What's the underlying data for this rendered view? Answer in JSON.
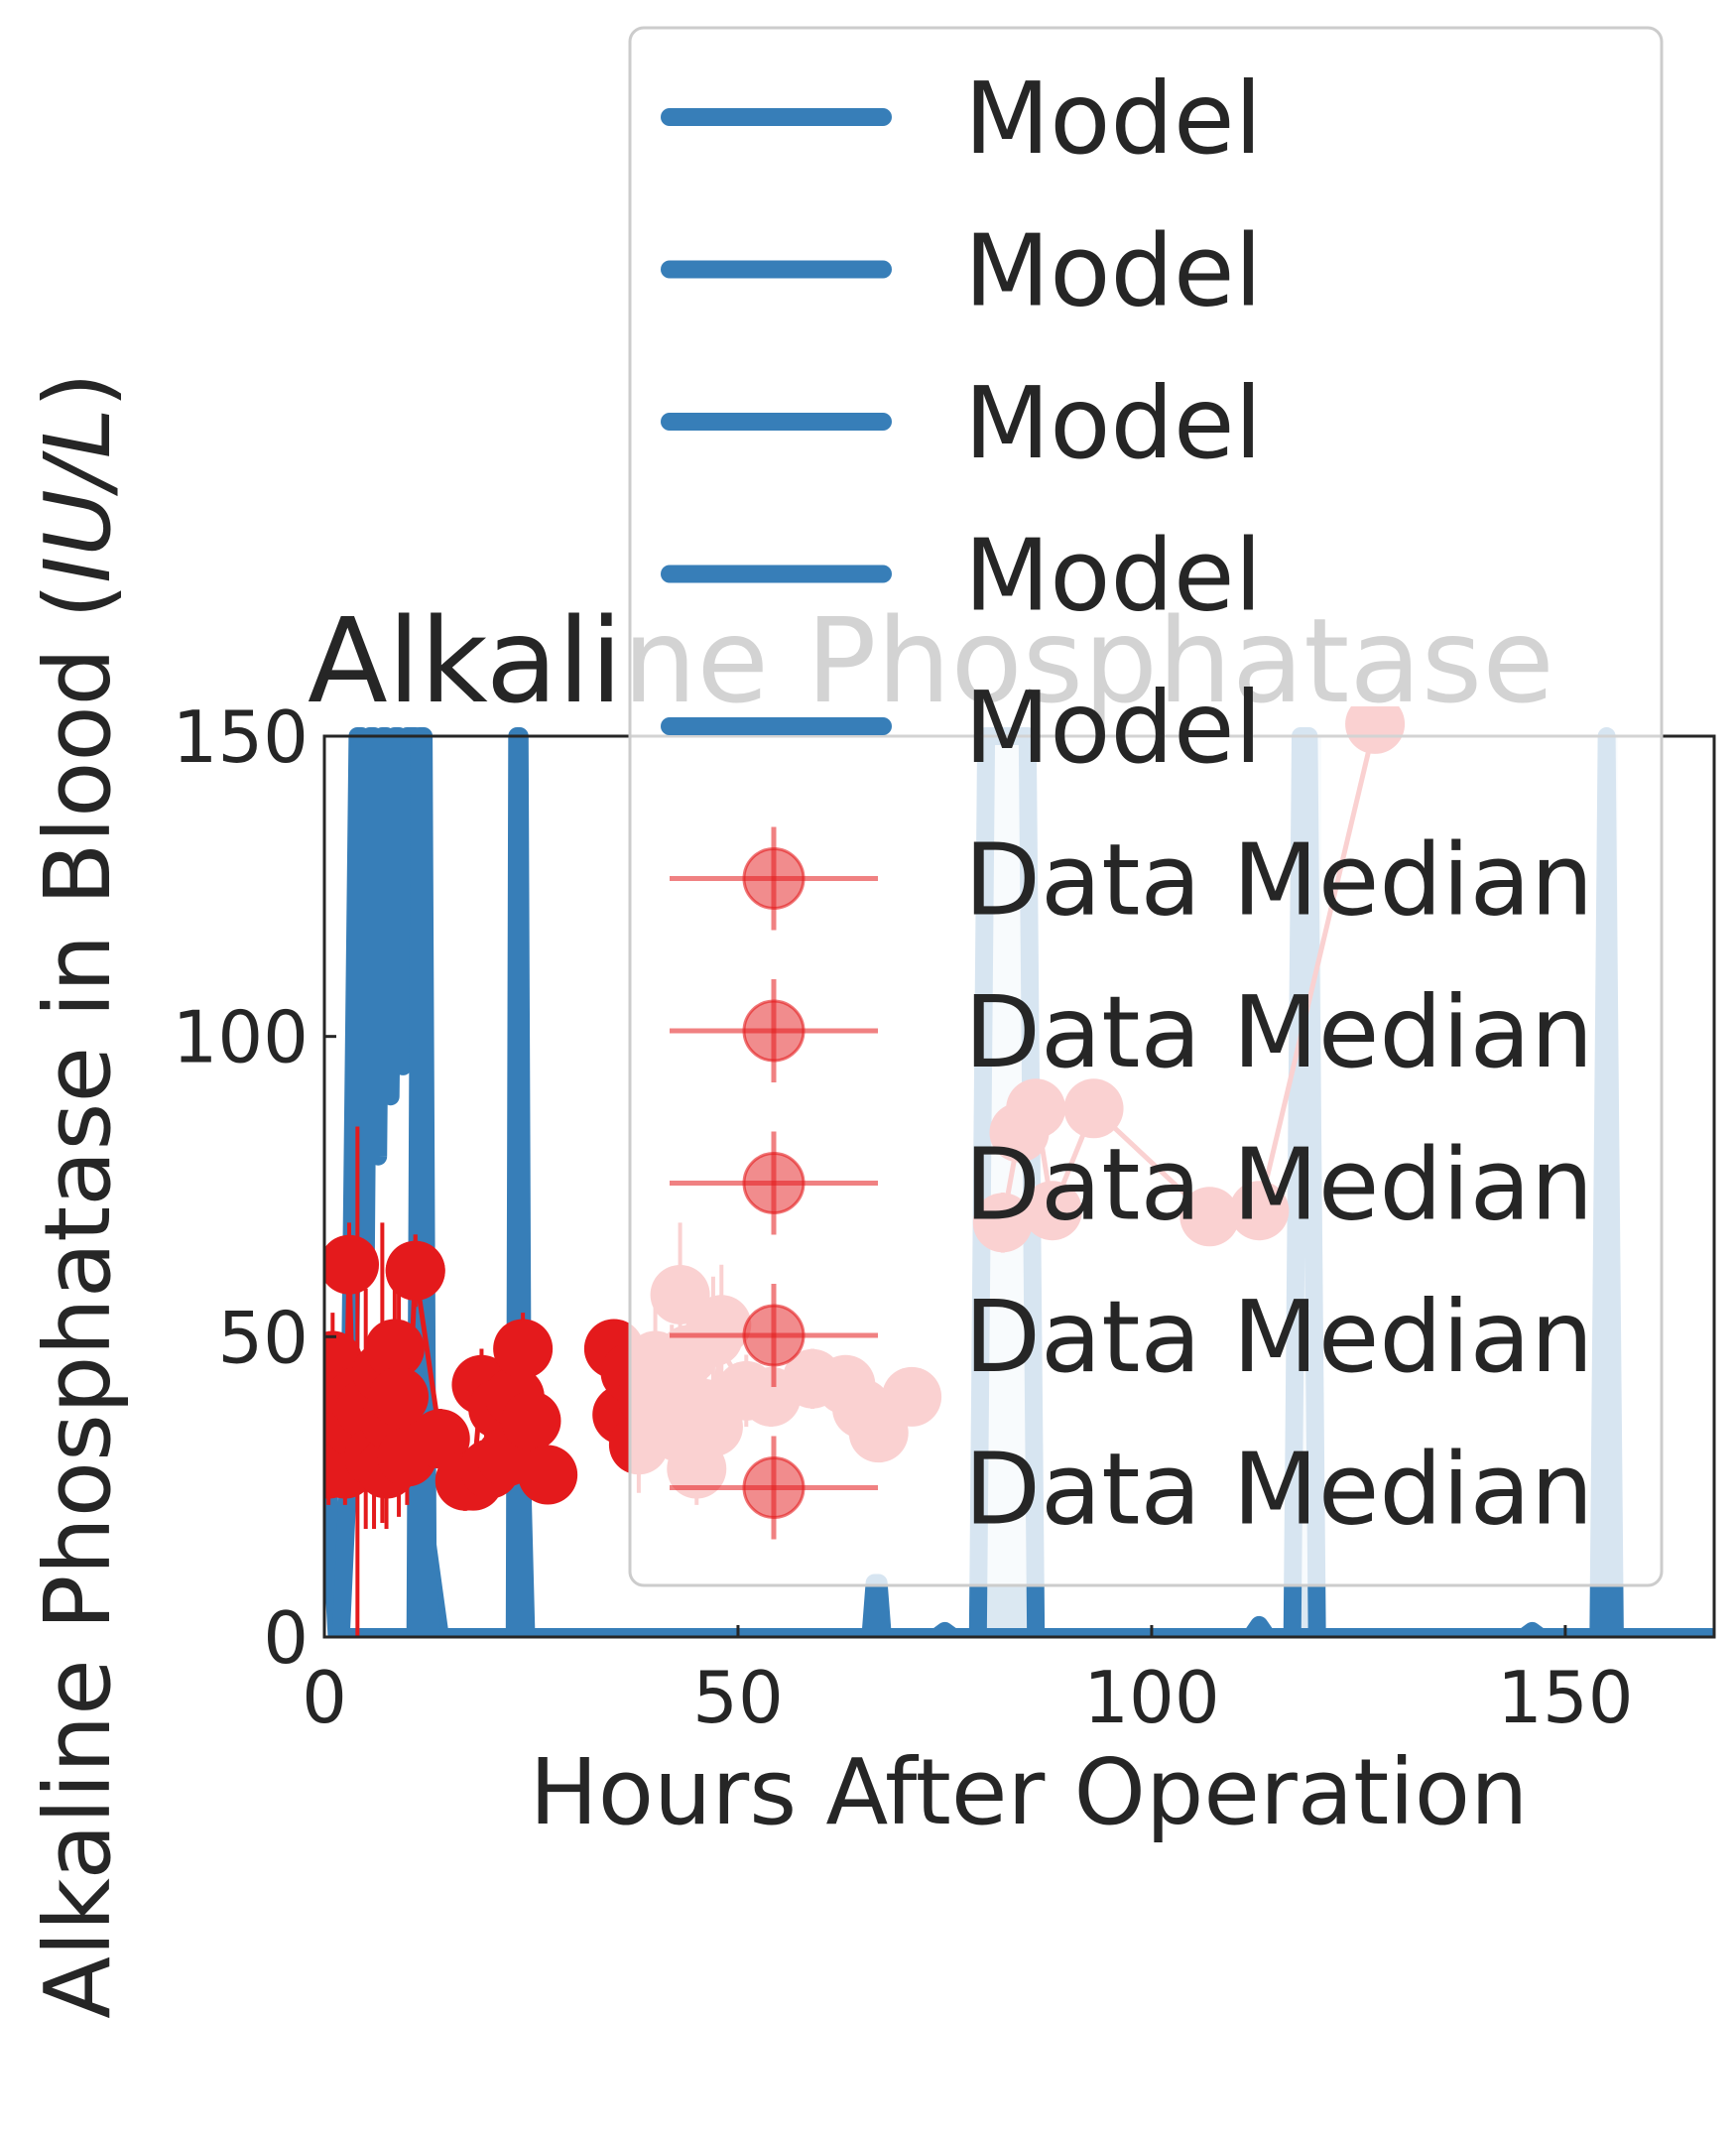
{
  "chart_data": {
    "type": "line",
    "title": "Alkaline Phosphatase",
    "xlabel": "Hours After Operation",
    "ylabel": "Alkaline Phosphatase in Blood (IU/L)",
    "ylabel_parts": {
      "prefix": "Alkaline Phosphatase in Blood (",
      "unit": "IU/L",
      "suffix": ")"
    },
    "xlim": [
      0,
      168
    ],
    "ylim": [
      0,
      150
    ],
    "xticks": [
      0,
      50,
      100,
      150
    ],
    "yticks": [
      0,
      50,
      100,
      150
    ],
    "xtick_labels": [
      "0",
      "50",
      "100",
      "150"
    ],
    "ytick_labels": [
      "0",
      "50",
      "100",
      "150"
    ],
    "grid": false,
    "legend_position": "top-right",
    "colors": {
      "model": "#377eb8",
      "data": "#e41a1c",
      "axis": "#262626",
      "legend_border": "#cccccc"
    },
    "legend": [
      {
        "label": "Model",
        "kind": "line"
      },
      {
        "label": "Model",
        "kind": "line"
      },
      {
        "label": "Model",
        "kind": "line"
      },
      {
        "label": "Model",
        "kind": "line"
      },
      {
        "label": "Model",
        "kind": "line"
      },
      {
        "label": "Data Median",
        "kind": "marker"
      },
      {
        "label": "Data Median",
        "kind": "marker"
      },
      {
        "label": "Data Median",
        "kind": "marker"
      },
      {
        "label": "Data Median",
        "kind": "marker"
      },
      {
        "label": "Data Median",
        "kind": "marker"
      }
    ],
    "model_series": [
      {
        "x": [
          0,
          0.5,
          1,
          1.5,
          2,
          2.5,
          3,
          4,
          5,
          6,
          7,
          8,
          9,
          10,
          11,
          12,
          14,
          18,
          22,
          24,
          40,
          60,
          66,
          70,
          80,
          84,
          86,
          90,
          100,
          110,
          112,
          118,
          120,
          130,
          145,
          150,
          155,
          160,
          168
        ],
        "y": [
          40,
          25,
          12,
          0,
          0,
          0,
          0,
          0,
          0,
          0,
          0,
          0,
          0,
          0,
          0,
          0,
          0,
          0,
          0,
          0,
          0,
          0,
          0,
          0,
          0,
          0,
          0,
          0,
          0,
          0,
          0,
          0,
          0,
          0,
          0,
          0,
          0,
          0,
          0
        ]
      },
      {
        "x": [
          2,
          3,
          4,
          4.5,
          5,
          5.5,
          6,
          6.5,
          7,
          7.5,
          8,
          8.5,
          9,
          9.5,
          10,
          10.5,
          11,
          12,
          14
        ],
        "y": [
          0,
          30,
          150,
          150,
          60,
          150,
          150,
          80,
          150,
          150,
          90,
          150,
          150,
          95,
          150,
          150,
          150,
          20,
          0
        ]
      },
      {
        "x": [
          11,
          11.5,
          12,
          12.5,
          13
        ],
        "y": [
          0,
          150,
          150,
          10,
          0
        ]
      },
      {
        "x": [
          23,
          23.3,
          23.6,
          24,
          24.4
        ],
        "y": [
          0,
          150,
          150,
          22,
          0
        ]
      },
      {
        "x": [
          66,
          66.5,
          67,
          67.5,
          68,
          74,
          75,
          76,
          79,
          80,
          81,
          82,
          83,
          84,
          85,
          86,
          112,
          113,
          114,
          117,
          118,
          119,
          120,
          145,
          146,
          147,
          154,
          155,
          156,
          168
        ],
        "y": [
          0,
          9,
          9,
          0,
          0,
          0,
          1,
          0,
          0,
          150,
          150,
          150,
          150,
          150,
          150,
          0,
          0,
          2,
          0,
          0,
          150,
          150,
          0,
          0,
          1,
          0,
          0,
          150,
          0,
          0
        ]
      }
    ],
    "model_bands": [
      {
        "x0": 79.5,
        "x1": 86,
        "opacity": 0.18
      },
      {
        "x0": 117.5,
        "x1": 120.5,
        "opacity": 0.18
      },
      {
        "x0": 154.3,
        "x1": 156.3,
        "opacity": 0.18
      }
    ],
    "data_series": [
      {
        "name": "Data Median",
        "x": [
          0.5,
          1,
          1.5,
          2,
          2.5,
          3,
          3.5,
          4,
          5,
          6,
          7,
          7.5,
          8,
          8.5,
          9,
          10,
          11
        ],
        "y": [
          28,
          46,
          40,
          32,
          28,
          62,
          35,
          40,
          38,
          30,
          44,
          28,
          36,
          48,
          40,
          30,
          61
        ],
        "err": [
          6,
          8,
          6,
          5,
          6,
          7,
          10,
          45,
          20,
          12,
          25,
          10,
          12,
          15,
          20,
          8,
          6
        ]
      },
      {
        "name": "Data Median",
        "x": [
          11,
          14,
          17,
          18,
          19,
          20,
          21,
          22,
          23,
          24,
          25,
          27
        ],
        "y": [
          61,
          33,
          26,
          26,
          42,
          28,
          38,
          30,
          40,
          48,
          36,
          27
        ],
        "err": [
          6,
          5,
          5,
          4,
          6,
          5,
          6,
          4,
          5,
          6,
          5,
          4
        ]
      },
      {
        "name": "Data Median",
        "x": [
          35,
          36,
          37,
          38,
          39,
          40,
          41,
          42,
          43,
          44,
          45,
          46,
          47,
          48
        ],
        "y": [
          48,
          37,
          44,
          32,
          40,
          46,
          36,
          43,
          34,
          47,
          28,
          38,
          35,
          52
        ],
        "err": [
          4,
          5,
          6,
          8,
          7,
          10,
          6,
          9,
          8,
          12,
          6,
          9,
          7,
          10
        ]
      },
      {
        "name": "Data Median",
        "x": [
          43,
          47,
          51,
          54,
          59,
          63,
          65,
          67,
          71
        ],
        "y": [
          57,
          50,
          41,
          40,
          43,
          42,
          38,
          34,
          40
        ],
        "err": [
          12,
          10,
          6,
          5,
          5,
          4,
          4,
          4,
          4
        ]
      },
      {
        "name": "Data Median",
        "x": [
          82,
          84,
          86,
          88,
          93,
          107,
          113,
          127
        ],
        "y": [
          69,
          84,
          88,
          71,
          88,
          70,
          71,
          152
        ],
        "err": [
          5,
          5,
          4,
          4,
          4,
          3,
          3,
          3
        ]
      }
    ]
  }
}
